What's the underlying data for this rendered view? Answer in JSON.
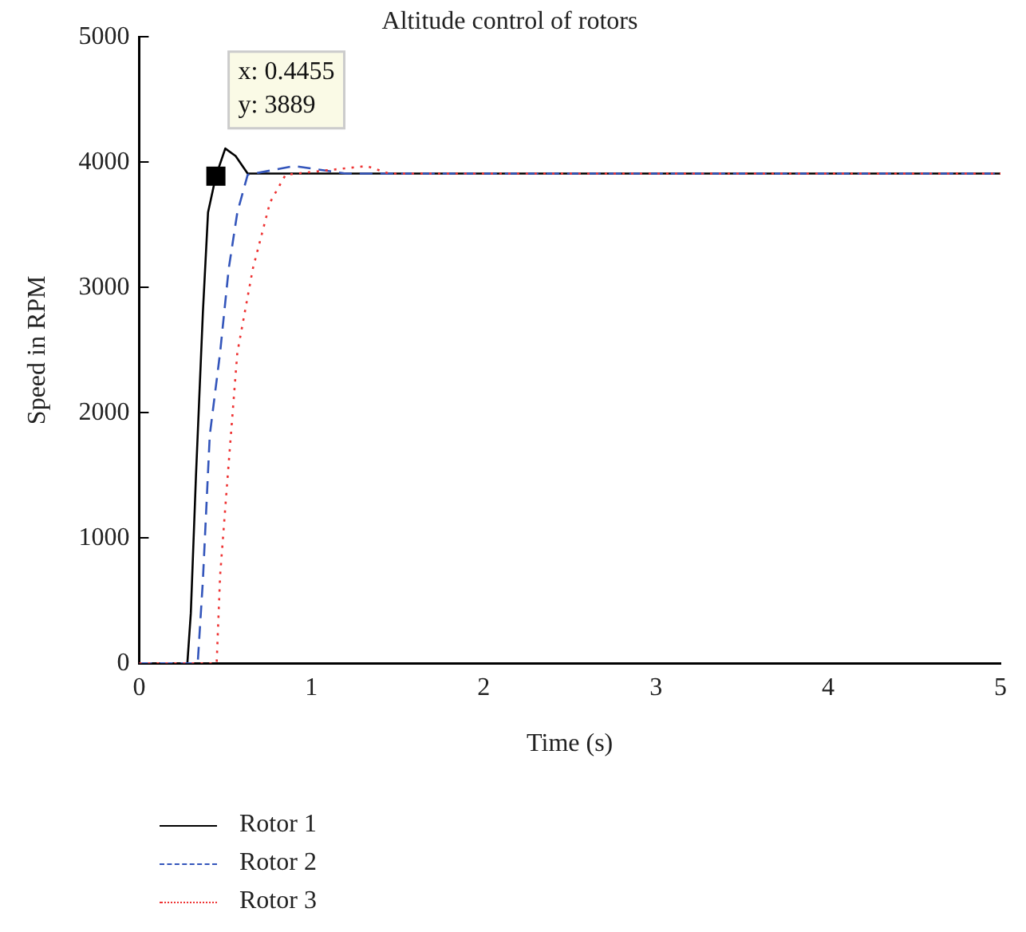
{
  "chart_data": {
    "type": "line",
    "title": "Altitude control of rotors",
    "xlabel": "Time (s)",
    "ylabel": "Speed in RPM",
    "xlim": [
      0,
      5
    ],
    "xticks": [
      0,
      1,
      2,
      3,
      4,
      5
    ],
    "ylim": [
      0,
      5000
    ],
    "yticks": [
      0,
      1000,
      2000,
      3000,
      4000,
      5000
    ],
    "grid": false,
    "legend": "bottom left",
    "marker": "none",
    "series": [
      {
        "name": "Rotor 1",
        "color": "#000000",
        "line_style": "solid",
        "x": [
          0,
          0.28,
          0.3,
          0.33,
          0.37,
          0.4,
          0.4455,
          0.5,
          0.56,
          0.63,
          1,
          2,
          3,
          4,
          5
        ],
        "values": [
          0,
          0,
          400,
          1500,
          2800,
          3600,
          3889,
          4110,
          4050,
          3910,
          3910,
          3910,
          3910,
          3910,
          3910
        ]
      },
      {
        "name": "Rotor 2",
        "color": "#3355bb",
        "line_style": "dashed",
        "x": [
          0,
          0.34,
          0.37,
          0.41,
          0.47,
          0.52,
          0.57,
          0.63,
          0.9,
          1.2,
          2,
          3,
          4,
          5
        ],
        "values": [
          0,
          0,
          660,
          1820,
          2480,
          3150,
          3600,
          3900,
          3970,
          3910,
          3910,
          3910,
          3910,
          3910
        ]
      },
      {
        "name": "Rotor 3",
        "color": "#ee3333",
        "line_style": "dotted",
        "x": [
          0,
          0.45,
          0.47,
          0.52,
          0.57,
          0.66,
          0.76,
          0.85,
          1.32,
          1.45,
          2,
          3,
          4,
          5
        ],
        "values": [
          0,
          0,
          700,
          1600,
          2480,
          3150,
          3680,
          3900,
          3970,
          3910,
          3910,
          3910,
          3910,
          3910
        ]
      }
    ],
    "annotations": [
      {
        "text": "x: 0.4455\ny: 3889",
        "x": 0.4455,
        "y": 3889
      }
    ]
  }
}
